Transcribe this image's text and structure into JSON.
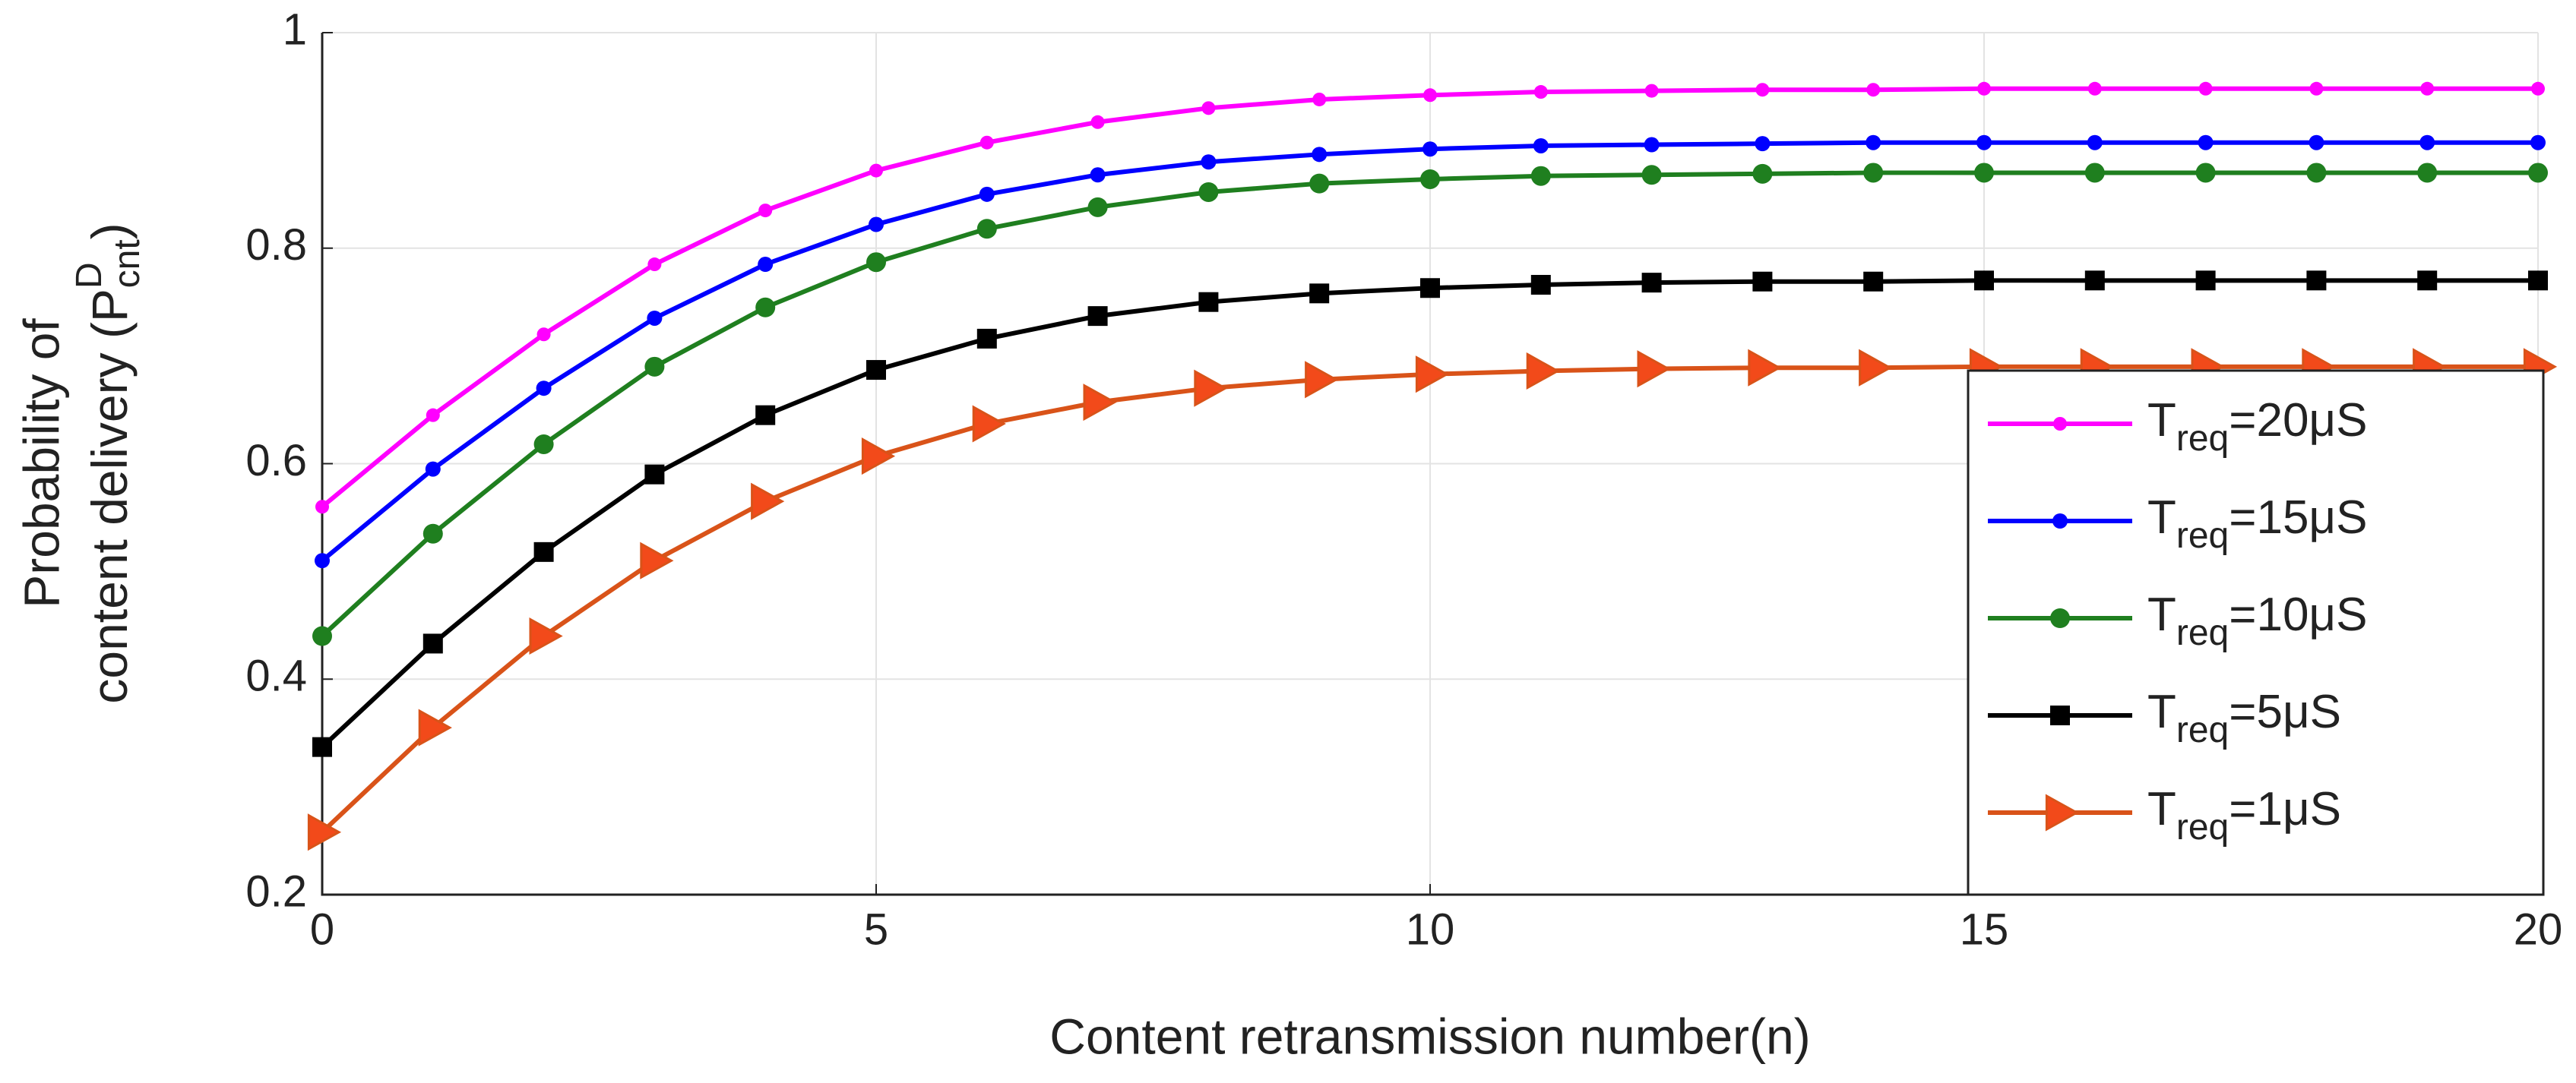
{
  "chart_data": {
    "type": "line",
    "xlabel": "Content retransmission number(n)",
    "ylabel": {
      "line1": "Probability of",
      "line2": "content delivery (P",
      "superscript": "D",
      "subscript": "cnt",
      "close": ")"
    },
    "x": [
      0,
      1,
      2,
      3,
      4,
      5,
      6,
      7,
      8,
      9,
      10,
      11,
      12,
      13,
      14,
      15,
      16,
      17,
      18,
      19,
      20
    ],
    "xlim": [
      0,
      20
    ],
    "xticks": [
      0,
      5,
      10,
      15,
      20
    ],
    "ylim": [
      0.2,
      1
    ],
    "yticks": [
      0.2,
      0.4,
      0.6,
      0.8,
      1
    ],
    "grid": true,
    "legend": "lower right",
    "series": [
      {
        "name": "Treq=20μS",
        "color": "#ff00ff",
        "marker": "circle",
        "markersize": 9,
        "values": [
          0.56,
          0.645,
          0.72,
          0.785,
          0.835,
          0.872,
          0.898,
          0.917,
          0.93,
          0.938,
          0.942,
          0.945,
          0.946,
          0.947,
          0.947,
          0.948,
          0.948,
          0.948,
          0.948,
          0.948,
          0.948
        ]
      },
      {
        "name": "Treq=15μS",
        "color": "#0000ff",
        "marker": "circle",
        "markersize": 10,
        "values": [
          0.51,
          0.595,
          0.67,
          0.735,
          0.785,
          0.822,
          0.85,
          0.868,
          0.88,
          0.887,
          0.892,
          0.895,
          0.896,
          0.897,
          0.898,
          0.898,
          0.898,
          0.898,
          0.898,
          0.898,
          0.898
        ]
      },
      {
        "name": "Treq=10μS",
        "color": "#1f7f1f",
        "marker": "circle",
        "markersize": 13,
        "values": [
          0.44,
          0.535,
          0.618,
          0.69,
          0.745,
          0.787,
          0.818,
          0.838,
          0.852,
          0.86,
          0.864,
          0.867,
          0.868,
          0.869,
          0.87,
          0.87,
          0.87,
          0.87,
          0.87,
          0.87,
          0.87
        ]
      },
      {
        "name": "Treq=5μS",
        "color": "#000000",
        "marker": "square",
        "markersize": 13,
        "values": [
          0.337,
          0.433,
          0.518,
          0.59,
          0.645,
          0.687,
          0.716,
          0.737,
          0.75,
          0.758,
          0.763,
          0.766,
          0.768,
          0.769,
          0.769,
          0.77,
          0.77,
          0.77,
          0.77,
          0.77,
          0.77
        ]
      },
      {
        "name": "Treq=1μS",
        "color": "#d95319",
        "marker": "triangle-right",
        "markersize": 22,
        "values": [
          0.258,
          0.355,
          0.44,
          0.51,
          0.565,
          0.607,
          0.637,
          0.657,
          0.67,
          0.678,
          0.683,
          0.686,
          0.688,
          0.689,
          0.689,
          0.69,
          0.69,
          0.69,
          0.69,
          0.69,
          0.69
        ]
      }
    ]
  }
}
